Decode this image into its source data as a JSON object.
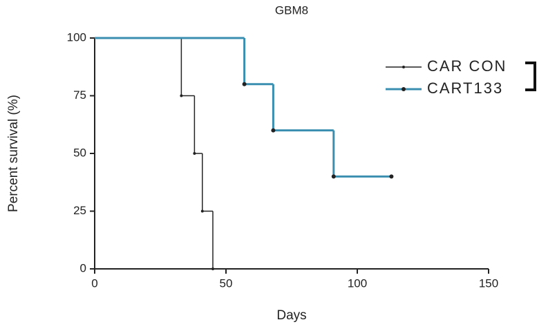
{
  "chart_data": {
    "type": "step",
    "title": "GBM8",
    "xlabel": "Days",
    "ylabel": "Percent survival (%)",
    "xlim": [
      0,
      150
    ],
    "xticks": [
      0,
      50,
      100,
      150
    ],
    "ylim": [
      0,
      100
    ],
    "yticks": [
      0,
      25,
      50,
      75,
      100
    ],
    "legend": "upper right",
    "series": [
      {
        "name": "CAR CON",
        "color": "#222222",
        "x": [
          0,
          33,
          38,
          41,
          45
        ],
        "values": [
          100,
          75,
          50,
          25,
          0
        ]
      },
      {
        "name": "CART133",
        "color": "#3a8fb0",
        "x": [
          0,
          57,
          68,
          91,
          113
        ],
        "values": [
          100,
          80,
          60,
          40,
          40
        ]
      }
    ]
  }
}
